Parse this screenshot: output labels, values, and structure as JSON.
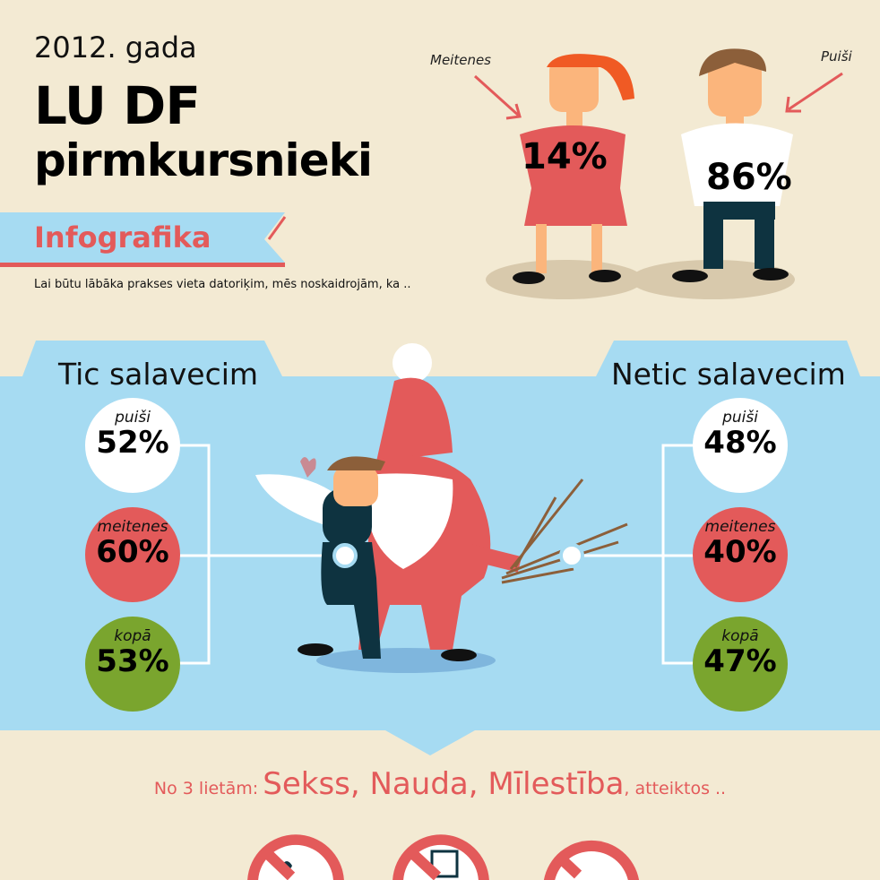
{
  "header": {
    "year": "2012. gada",
    "title_line1": "LU DF",
    "title_line2": "pirmkursnieki",
    "ribbon": "Infografika",
    "lead": "Lai būtu lābāka prakses vieta datoriķim, mēs noskaidrojām, ka .."
  },
  "gender": {
    "girls_label": "Meitenes",
    "girls_pct": "14%",
    "boys_label": "Puiši",
    "boys_pct": "86%"
  },
  "santa": {
    "believe": {
      "title": "Tic salavecim",
      "items": [
        {
          "label": "puiši",
          "value": "52%"
        },
        {
          "label": "meitenes",
          "value": "60%"
        },
        {
          "label": "kopā",
          "value": "53%"
        }
      ]
    },
    "not_believe": {
      "title": "Netic salavecim",
      "items": [
        {
          "label": "puiši",
          "value": "48%"
        },
        {
          "label": "meitenes",
          "value": "40%"
        },
        {
          "label": "kopā",
          "value": "47%"
        }
      ]
    }
  },
  "bottom": {
    "prefix": "No 3 lietām:",
    "items": "Sekss, Nauda, Mīlestība",
    "suffix": ", atteiktos .."
  },
  "colors": {
    "bg": "#f3ead3",
    "blue": "#a6dbf2",
    "red": "#e35a5a",
    "green": "#7aa52e",
    "dark": "#0e3340"
  }
}
